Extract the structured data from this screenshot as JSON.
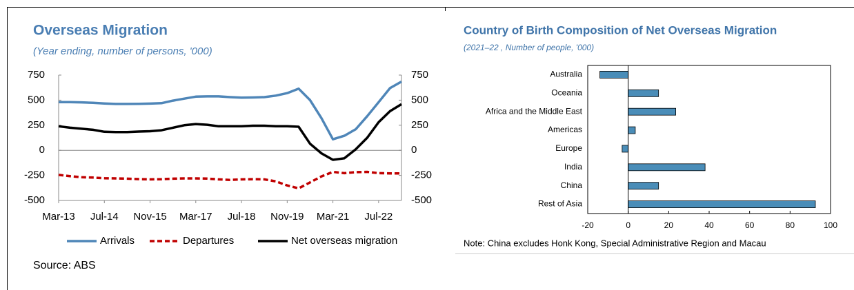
{
  "chart_data": [
    {
      "type": "line",
      "title": "Overseas Migration",
      "subtitle": "(Year ending, number of persons, '000)",
      "categories": [
        "Mar-13",
        null,
        null,
        null,
        "Jul-14",
        null,
        null,
        null,
        "Nov-15",
        null,
        null,
        null,
        "Mar-17",
        null,
        null,
        null,
        "Jul-18",
        null,
        null,
        null,
        "Nov-19",
        null,
        null,
        null,
        "Mar-21",
        null,
        null,
        null,
        "Jul-22",
        null,
        null
      ],
      "series": [
        {
          "name": "Arrivals",
          "color": "#4f86b8",
          "style": "solid",
          "values": [
            480,
            480,
            478,
            473,
            467,
            462,
            462,
            463,
            466,
            470,
            495,
            515,
            535,
            538,
            538,
            530,
            525,
            527,
            530,
            545,
            570,
            615,
            500,
            320,
            110,
            145,
            210,
            340,
            480,
            620,
            685
          ]
        },
        {
          "name": "Departures",
          "color": "#c00000",
          "style": "dashed",
          "values": [
            -245,
            -258,
            -268,
            -272,
            -278,
            -280,
            -283,
            -287,
            -290,
            -288,
            -283,
            -280,
            -280,
            -282,
            -290,
            -295,
            -290,
            -288,
            -290,
            -310,
            -350,
            -380,
            -320,
            -260,
            -215,
            -228,
            -218,
            -215,
            -228,
            -230,
            -230
          ]
        },
        {
          "name": "Net overseas migration",
          "color": "#000000",
          "style": "solid",
          "values": [
            240,
            225,
            215,
            205,
            185,
            182,
            182,
            187,
            190,
            200,
            225,
            250,
            262,
            255,
            240,
            240,
            240,
            245,
            245,
            240,
            240,
            235,
            65,
            -30,
            -95,
            -80,
            10,
            125,
            280,
            390,
            460
          ]
        }
      ],
      "ylim": [
        -500,
        750
      ],
      "yticks": [
        -500,
        -250,
        0,
        250,
        500,
        750
      ],
      "y2lim": [
        -500,
        750
      ],
      "y2ticks": [
        -500,
        -250,
        0,
        250,
        500,
        750
      ],
      "legend": "bottom",
      "note": "Source: ABS"
    },
    {
      "type": "bar",
      "orientation": "horizontal",
      "title": "Country of Birth Composition of Net Overseas Migration",
      "subtitle": "(2021–22 , Number of people, '000)",
      "categories": [
        "Australia",
        "Oceania",
        "Africa and the Middle East",
        "Americas",
        "Europe",
        "India",
        "China",
        "Rest of Asia"
      ],
      "values": [
        -14,
        15,
        23.5,
        3.5,
        -3,
        38,
        15,
        92.5
      ],
      "color": "#4a8db8",
      "xlim": [
        -20,
        100
      ],
      "xticks": [
        -20,
        0,
        20,
        40,
        60,
        80,
        100
      ],
      "note": "Note: China excludes Honk Kong, Special Administrative Region and Macau"
    }
  ]
}
